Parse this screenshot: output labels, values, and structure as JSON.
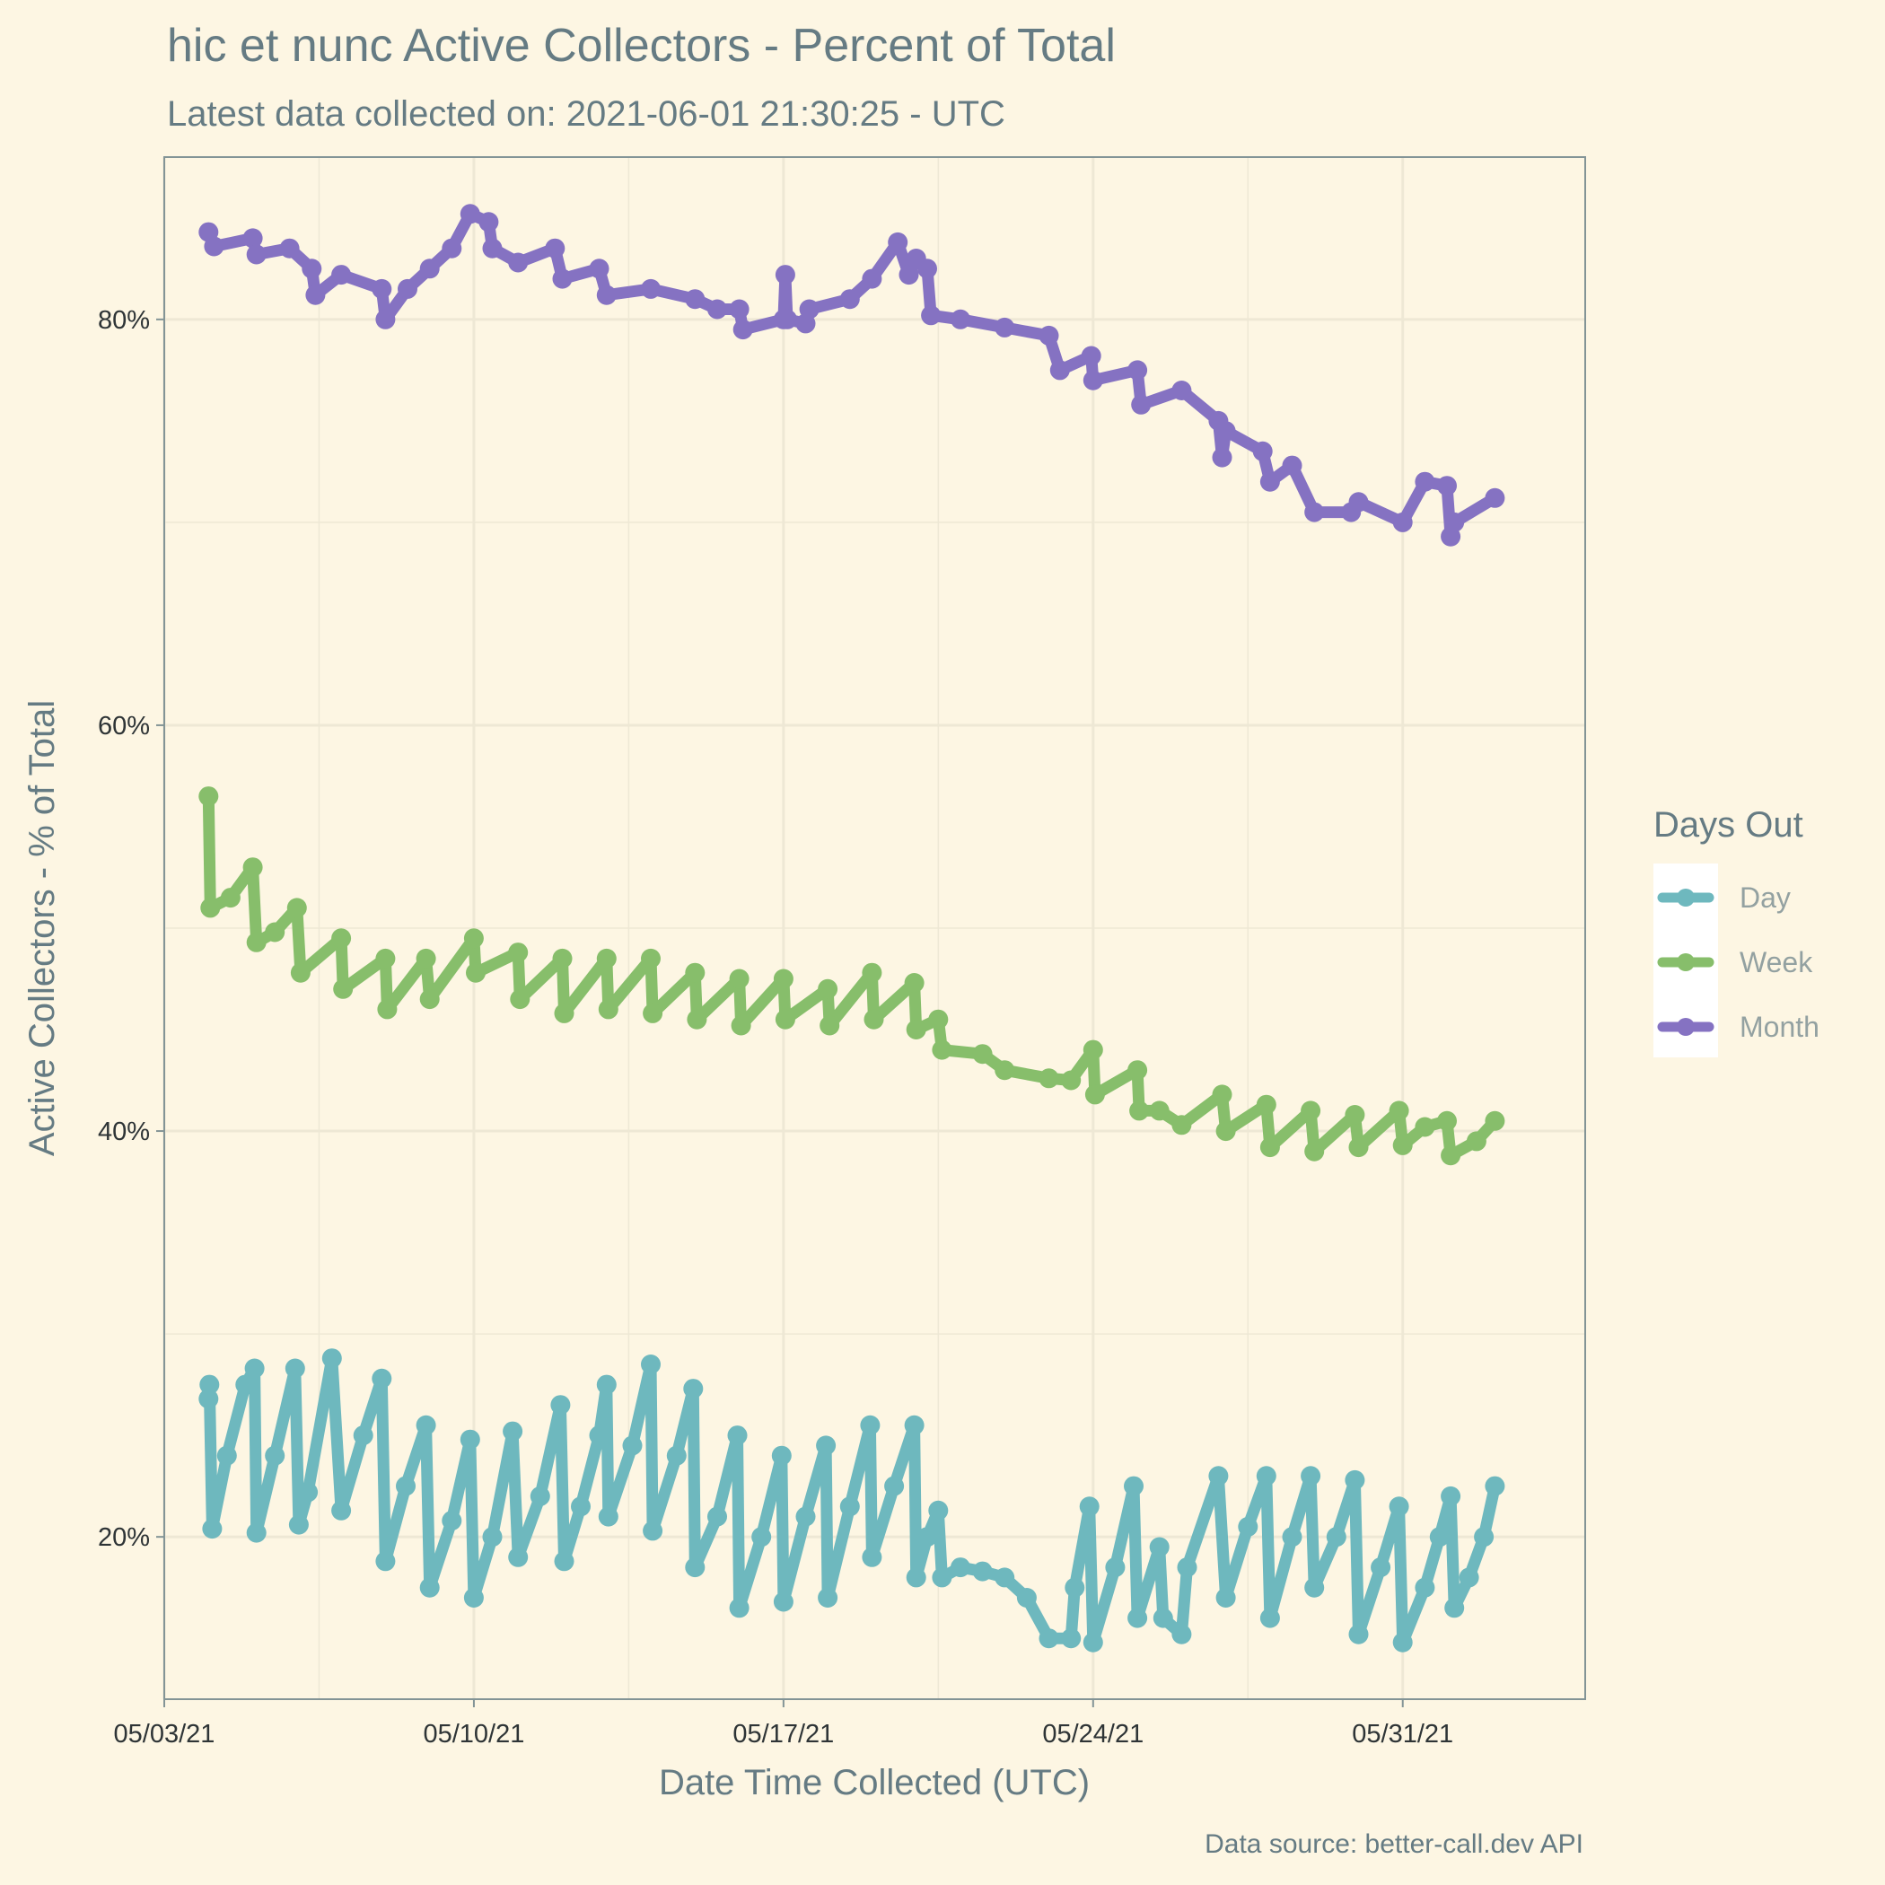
{
  "chart_data": {
    "type": "line",
    "title": "hic et nunc Active Collectors - Percent of Total",
    "subtitle": "Latest data collected on: 2021-06-01 21:30:25  - UTC",
    "xlabel": "Date Time Collected (UTC)",
    "ylabel": "Active Collectors - % of Total",
    "caption": "Data source: better-call.dev API",
    "x_ticks": [
      "05/03/21",
      "05/10/21",
      "05/17/21",
      "05/24/21",
      "05/31/21"
    ],
    "y_ticks": [
      "20%",
      "40%",
      "60%",
      "80%"
    ],
    "xlim": [
      "2021-05-03T00:00",
      "2021-06-04T03:00"
    ],
    "ylim": [
      12,
      88
    ],
    "grid": true,
    "legend": {
      "title": "Days Out",
      "position": "right",
      "labels": [
        "Day",
        "Week",
        "Month"
      ]
    },
    "series": [
      {
        "name": "Day",
        "color": "#6eb8be",
        "points": [
          [
            "2021-05-04T00:00",
            26.8
          ],
          [
            "2021-05-04T00:30",
            27.5
          ],
          [
            "2021-05-04T02:00",
            20.4
          ],
          [
            "2021-05-04T10:00",
            24.0
          ],
          [
            "2021-05-04T20:00",
            27.5
          ],
          [
            "2021-05-05T01:00",
            28.3
          ],
          [
            "2021-05-05T02:00",
            20.2
          ],
          [
            "2021-05-05T12:00",
            24.0
          ],
          [
            "2021-05-05T23:00",
            28.3
          ],
          [
            "2021-05-06T01:00",
            20.6
          ],
          [
            "2021-05-06T06:00",
            22.2
          ],
          [
            "2021-05-06T19:00",
            28.8
          ],
          [
            "2021-05-07T00:00",
            21.3
          ],
          [
            "2021-05-07T12:00",
            25.0
          ],
          [
            "2021-05-07T22:00",
            27.8
          ],
          [
            "2021-05-08T00:00",
            18.8
          ],
          [
            "2021-05-08T11:00",
            22.5
          ],
          [
            "2021-05-08T22:00",
            25.5
          ],
          [
            "2021-05-09T00:00",
            17.5
          ],
          [
            "2021-05-09T12:00",
            20.8
          ],
          [
            "2021-05-09T22:00",
            24.8
          ],
          [
            "2021-05-10T00:00",
            17.0
          ],
          [
            "2021-05-10T10:00",
            20.0
          ],
          [
            "2021-05-10T21:00",
            25.2
          ],
          [
            "2021-05-11T00:00",
            19.0
          ],
          [
            "2021-05-11T12:00",
            22.0
          ],
          [
            "2021-05-11T23:00",
            26.5
          ],
          [
            "2021-05-12T01:00",
            18.8
          ],
          [
            "2021-05-12T10:00",
            21.5
          ],
          [
            "2021-05-12T20:00",
            25.0
          ],
          [
            "2021-05-13T00:00",
            27.5
          ],
          [
            "2021-05-13T01:00",
            21.0
          ],
          [
            "2021-05-13T14:00",
            24.5
          ],
          [
            "2021-05-14T00:00",
            28.5
          ],
          [
            "2021-05-14T01:00",
            20.3
          ],
          [
            "2021-05-14T14:00",
            24.0
          ],
          [
            "2021-05-14T23:00",
            27.3
          ],
          [
            "2021-05-15T00:00",
            18.5
          ],
          [
            "2021-05-15T12:00",
            21.0
          ],
          [
            "2021-05-15T23:00",
            25.0
          ],
          [
            "2021-05-16T00:00",
            16.5
          ],
          [
            "2021-05-16T12:00",
            20.0
          ],
          [
            "2021-05-16T23:00",
            24.0
          ],
          [
            "2021-05-17T00:00",
            16.8
          ],
          [
            "2021-05-17T12:00",
            21.0
          ],
          [
            "2021-05-17T23:00",
            24.5
          ],
          [
            "2021-05-18T00:00",
            17.0
          ],
          [
            "2021-05-18T12:00",
            21.5
          ],
          [
            "2021-05-18T23:00",
            25.5
          ],
          [
            "2021-05-19T00:00",
            19.0
          ],
          [
            "2021-05-19T12:00",
            22.5
          ],
          [
            "2021-05-19T23:00",
            25.5
          ],
          [
            "2021-05-20T00:00",
            18.0
          ],
          [
            "2021-05-20T06:00",
            20.0
          ],
          [
            "2021-05-20T12:00",
            21.3
          ],
          [
            "2021-05-20T14:00",
            18.0
          ],
          [
            "2021-05-21T00:00",
            18.5
          ],
          [
            "2021-05-21T12:00",
            18.3
          ],
          [
            "2021-05-22T00:00",
            18.0
          ],
          [
            "2021-05-22T12:00",
            17.0
          ],
          [
            "2021-05-23T00:00",
            15.0
          ],
          [
            "2021-05-23T12:00",
            15.0
          ],
          [
            "2021-05-23T14:00",
            17.5
          ],
          [
            "2021-05-23T22:00",
            21.5
          ],
          [
            "2021-05-24T00:00",
            14.8
          ],
          [
            "2021-05-24T12:00",
            18.5
          ],
          [
            "2021-05-24T22:00",
            22.5
          ],
          [
            "2021-05-25T00:00",
            16.0
          ],
          [
            "2021-05-25T12:00",
            19.5
          ],
          [
            "2021-05-25T14:00",
            16.0
          ],
          [
            "2021-05-26T00:00",
            15.2
          ],
          [
            "2021-05-26T03:00",
            18.5
          ],
          [
            "2021-05-26T20:00",
            23.0
          ],
          [
            "2021-05-27T00:00",
            17.0
          ],
          [
            "2021-05-27T12:00",
            20.5
          ],
          [
            "2021-05-27T22:00",
            23.0
          ],
          [
            "2021-05-28T00:00",
            16.0
          ],
          [
            "2021-05-28T12:00",
            20.0
          ],
          [
            "2021-05-28T22:00",
            23.0
          ],
          [
            "2021-05-29T00:00",
            17.5
          ],
          [
            "2021-05-29T12:00",
            20.0
          ],
          [
            "2021-05-29T22:00",
            22.8
          ],
          [
            "2021-05-30T00:00",
            15.2
          ],
          [
            "2021-05-30T12:00",
            18.5
          ],
          [
            "2021-05-30T22:00",
            21.5
          ],
          [
            "2021-05-31T00:00",
            14.8
          ],
          [
            "2021-05-31T12:00",
            17.5
          ],
          [
            "2021-05-31T20:00",
            20.0
          ],
          [
            "2021-06-01T02:00",
            22.0
          ],
          [
            "2021-06-01T04:00",
            16.5
          ],
          [
            "2021-06-01T12:00",
            18.0
          ],
          [
            "2021-06-01T20:00",
            20.0
          ],
          [
            "2021-06-02T02:00",
            22.5
          ]
        ]
      },
      {
        "name": "Week",
        "color": "#87be6b",
        "points": [
          [
            "2021-05-04T00:00",
            56.5
          ],
          [
            "2021-05-04T01:00",
            51.0
          ],
          [
            "2021-05-04T12:00",
            51.5
          ],
          [
            "2021-05-05T00:00",
            53.0
          ],
          [
            "2021-05-05T02:00",
            49.3
          ],
          [
            "2021-05-05T12:00",
            49.8
          ],
          [
            "2021-05-06T00:00",
            51.0
          ],
          [
            "2021-05-06T02:00",
            47.8
          ],
          [
            "2021-05-07T00:00",
            49.5
          ],
          [
            "2021-05-07T01:00",
            47.0
          ],
          [
            "2021-05-08T00:00",
            48.5
          ],
          [
            "2021-05-08T01:00",
            46.0
          ],
          [
            "2021-05-08T22:00",
            48.5
          ],
          [
            "2021-05-09T00:00",
            46.5
          ],
          [
            "2021-05-10T00:00",
            49.5
          ],
          [
            "2021-05-10T01:00",
            47.8
          ],
          [
            "2021-05-11T00:00",
            48.8
          ],
          [
            "2021-05-11T01:00",
            46.5
          ],
          [
            "2021-05-12T00:00",
            48.5
          ],
          [
            "2021-05-12T01:00",
            45.8
          ],
          [
            "2021-05-13T00:00",
            48.5
          ],
          [
            "2021-05-13T01:00",
            46.0
          ],
          [
            "2021-05-14T00:00",
            48.5
          ],
          [
            "2021-05-14T01:00",
            45.8
          ],
          [
            "2021-05-15T00:00",
            47.8
          ],
          [
            "2021-05-15T01:00",
            45.5
          ],
          [
            "2021-05-16T00:00",
            47.5
          ],
          [
            "2021-05-16T01:00",
            45.2
          ],
          [
            "2021-05-17T00:00",
            47.5
          ],
          [
            "2021-05-17T01:00",
            45.5
          ],
          [
            "2021-05-18T00:00",
            47.0
          ],
          [
            "2021-05-18T01:00",
            45.2
          ],
          [
            "2021-05-19T00:00",
            47.8
          ],
          [
            "2021-05-19T01:00",
            45.5
          ],
          [
            "2021-05-19T23:00",
            47.3
          ],
          [
            "2021-05-20T00:00",
            45.0
          ],
          [
            "2021-05-20T12:00",
            45.5
          ],
          [
            "2021-05-20T14:00",
            44.0
          ],
          [
            "2021-05-21T12:00",
            43.8
          ],
          [
            "2021-05-22T00:00",
            43.0
          ],
          [
            "2021-05-23T00:00",
            42.6
          ],
          [
            "2021-05-23T12:00",
            42.5
          ],
          [
            "2021-05-24T00:00",
            44.0
          ],
          [
            "2021-05-24T01:00",
            41.8
          ],
          [
            "2021-05-25T00:00",
            43.0
          ],
          [
            "2021-05-25T01:00",
            41.0
          ],
          [
            "2021-05-25T12:00",
            41.0
          ],
          [
            "2021-05-26T00:00",
            40.3
          ],
          [
            "2021-05-26T22:00",
            41.8
          ],
          [
            "2021-05-27T00:00",
            40.0
          ],
          [
            "2021-05-27T22:00",
            41.3
          ],
          [
            "2021-05-28T00:00",
            39.2
          ],
          [
            "2021-05-28T22:00",
            41.0
          ],
          [
            "2021-05-29T00:00",
            39.0
          ],
          [
            "2021-05-29T22:00",
            40.8
          ],
          [
            "2021-05-30T00:00",
            39.2
          ],
          [
            "2021-05-30T22:00",
            41.0
          ],
          [
            "2021-05-31T00:00",
            39.3
          ],
          [
            "2021-05-31T12:00",
            40.2
          ],
          [
            "2021-06-01T00:00",
            40.5
          ],
          [
            "2021-06-01T02:00",
            38.8
          ],
          [
            "2021-06-01T16:00",
            39.5
          ],
          [
            "2021-06-02T02:00",
            40.5
          ]
        ]
      },
      {
        "name": "Month",
        "color": "#8572c2",
        "points": [
          [
            "2021-05-04T00:00",
            84.3
          ],
          [
            "2021-05-04T03:00",
            83.6
          ],
          [
            "2021-05-05T00:00",
            84.0
          ],
          [
            "2021-05-05T02:00",
            83.2
          ],
          [
            "2021-05-05T20:00",
            83.5
          ],
          [
            "2021-05-06T08:00",
            82.5
          ],
          [
            "2021-05-06T10:00",
            81.2
          ],
          [
            "2021-05-07T00:00",
            82.2
          ],
          [
            "2021-05-07T22:00",
            81.5
          ],
          [
            "2021-05-08T00:00",
            80.0
          ],
          [
            "2021-05-08T12:00",
            81.5
          ],
          [
            "2021-05-09T00:00",
            82.5
          ],
          [
            "2021-05-09T12:00",
            83.5
          ],
          [
            "2021-05-09T22:00",
            85.2
          ],
          [
            "2021-05-10T08:00",
            84.8
          ],
          [
            "2021-05-10T10:00",
            83.5
          ],
          [
            "2021-05-11T00:00",
            82.8
          ],
          [
            "2021-05-11T20:00",
            83.5
          ],
          [
            "2021-05-12T00:00",
            82.0
          ],
          [
            "2021-05-12T20:00",
            82.5
          ],
          [
            "2021-05-13T00:00",
            81.2
          ],
          [
            "2021-05-14T00:00",
            81.5
          ],
          [
            "2021-05-15T00:00",
            81.0
          ],
          [
            "2021-05-15T12:00",
            80.5
          ],
          [
            "2021-05-16T00:00",
            80.5
          ],
          [
            "2021-05-16T02:00",
            79.5
          ],
          [
            "2021-05-17T00:00",
            80.0
          ],
          [
            "2021-05-17T01:00",
            82.2
          ],
          [
            "2021-05-17T02:00",
            80.0
          ],
          [
            "2021-05-17T12:00",
            79.8
          ],
          [
            "2021-05-17T14:00",
            80.5
          ],
          [
            "2021-05-18T12:00",
            81.0
          ],
          [
            "2021-05-19T00:00",
            82.0
          ],
          [
            "2021-05-19T14:00",
            83.8
          ],
          [
            "2021-05-19T20:00",
            82.2
          ],
          [
            "2021-05-20T00:00",
            83.0
          ],
          [
            "2021-05-20T06:00",
            82.5
          ],
          [
            "2021-05-20T08:00",
            80.2
          ],
          [
            "2021-05-21T00:00",
            80.0
          ],
          [
            "2021-05-22T00:00",
            79.6
          ],
          [
            "2021-05-23T00:00",
            79.2
          ],
          [
            "2021-05-23T06:00",
            77.5
          ],
          [
            "2021-05-23T23:00",
            78.2
          ],
          [
            "2021-05-24T00:00",
            77.0
          ],
          [
            "2021-05-25T00:00",
            77.5
          ],
          [
            "2021-05-25T02:00",
            75.8
          ],
          [
            "2021-05-26T00:00",
            76.5
          ],
          [
            "2021-05-26T20:00",
            75.0
          ],
          [
            "2021-05-26T22:00",
            73.2
          ],
          [
            "2021-05-27T00:00",
            74.5
          ],
          [
            "2021-05-27T20:00",
            73.5
          ],
          [
            "2021-05-28T00:00",
            72.0
          ],
          [
            "2021-05-28T12:00",
            72.8
          ],
          [
            "2021-05-29T00:00",
            70.5
          ],
          [
            "2021-05-29T20:00",
            70.5
          ],
          [
            "2021-05-30T00:00",
            71.0
          ],
          [
            "2021-05-31T00:00",
            70.0
          ],
          [
            "2021-05-31T12:00",
            72.0
          ],
          [
            "2021-06-01T00:00",
            71.8
          ],
          [
            "2021-06-01T02:00",
            69.3
          ],
          [
            "2021-06-01T04:00",
            70.0
          ],
          [
            "2021-06-02T02:00",
            71.2
          ]
        ]
      }
    ]
  }
}
